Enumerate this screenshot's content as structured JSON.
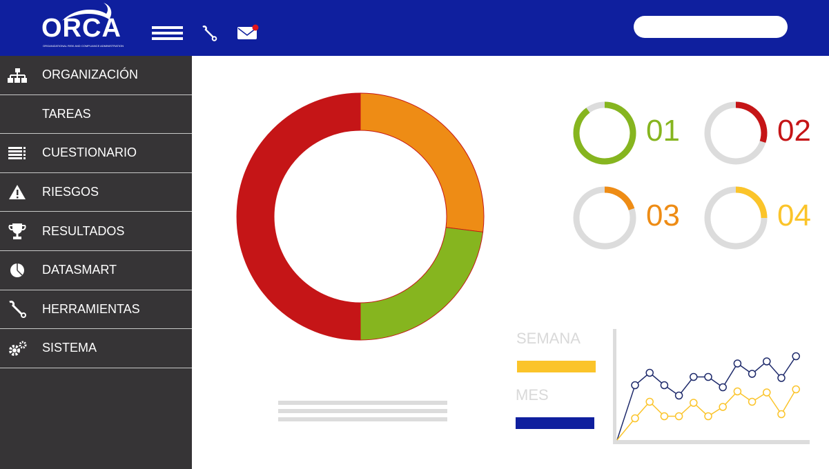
{
  "header": {
    "logo_text": "ORCA",
    "logo_subtitle": "ORGANIZATIONAL RISK AND COMPLIANCE ADMINISTRATION",
    "search_value": "",
    "notification_dot_color": "#e3141b"
  },
  "sidebar": {
    "items": [
      {
        "label": "ORGANIZACIÓN",
        "icon": "org-chart-icon"
      },
      {
        "label": "TAREAS",
        "icon": ""
      },
      {
        "label": "CUESTIONARIO",
        "icon": "list-icon"
      },
      {
        "label": "RIESGOS",
        "icon": "warning-icon"
      },
      {
        "label": "RESULTADOS",
        "icon": "trophy-icon"
      },
      {
        "label": "DATASMART",
        "icon": "pie-icon"
      },
      {
        "label": "HERRAMIENTAS",
        "icon": "wrench-icon"
      },
      {
        "label": "SISTEMA",
        "icon": "gears-icon"
      }
    ]
  },
  "colors": {
    "header": "#0f1f9e",
    "sidebar": "#363436",
    "red": "#c51517",
    "orange": "#ee8c15",
    "green": "#86b51f",
    "yellow": "#fbc42a",
    "navy": "#1e2a6b",
    "gray": "#dcdcdc"
  },
  "main_donut": {
    "segments": [
      {
        "color": "#ee8c15",
        "value": 27
      },
      {
        "color": "#86b51f",
        "value": 23
      },
      {
        "color": "#c51517",
        "value": 50
      }
    ]
  },
  "kpis": [
    {
      "label": "01",
      "color": "#86b51f",
      "percent": 90
    },
    {
      "label": "02",
      "color": "#c51517",
      "percent": 30
    },
    {
      "label": "03",
      "color": "#ee8c15",
      "percent": 20
    },
    {
      "label": "04",
      "color": "#fbc42a",
      "percent": 25
    }
  ],
  "legend": {
    "week": "SEMANA",
    "month": "MES"
  },
  "chart_data": {
    "type": "line",
    "x": [
      0,
      1,
      2,
      3,
      4,
      5,
      6,
      7,
      8,
      9,
      10,
      11,
      12
    ],
    "series": [
      {
        "name": "MES",
        "color": "#1e2a6b",
        "values": [
          0,
          53,
          65,
          53,
          43,
          61,
          61,
          51,
          74,
          64,
          76,
          60,
          81
        ]
      },
      {
        "name": "SEMANA",
        "color": "#fbc42a",
        "values": [
          0,
          21,
          37,
          23,
          23,
          36,
          23,
          32,
          47,
          37,
          46,
          25,
          49
        ]
      }
    ],
    "ylim": [
      0,
      100
    ],
    "grid": false
  }
}
